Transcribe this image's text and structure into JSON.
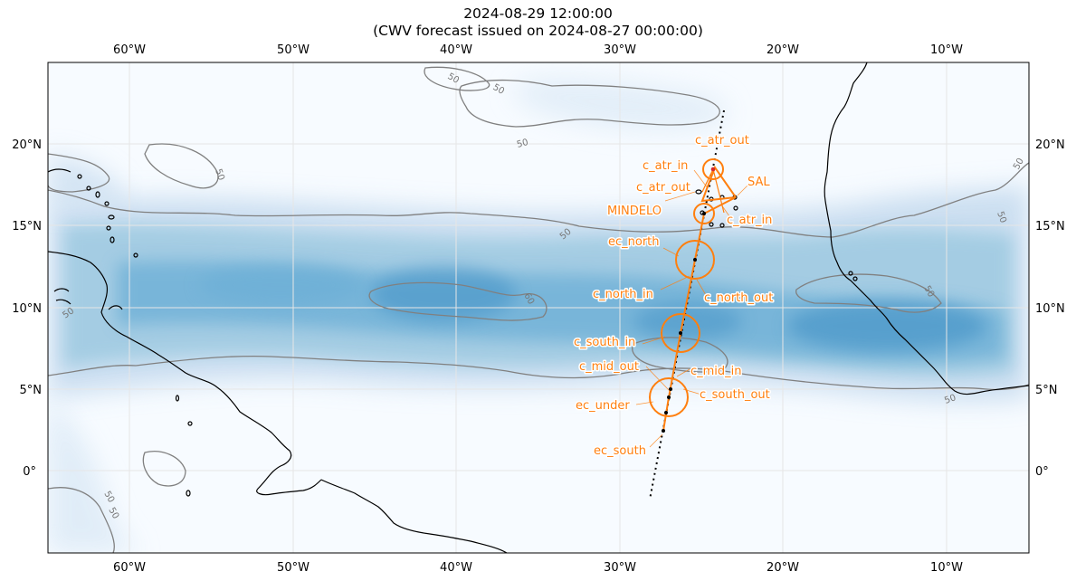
{
  "title": {
    "line1": "2024-08-29 12:00:00",
    "line2": "(CWV forecast issued on 2024-08-27 00:00:00)"
  },
  "axes": {
    "lon_ticks": [
      "60°W",
      "50°W",
      "40°W",
      "30°W",
      "20°W",
      "10°W"
    ],
    "lat_ticks": [
      "20°N",
      "15°N",
      "10°N",
      "5°N",
      "0°"
    ]
  },
  "extent": {
    "lon": [
      -65,
      -5
    ],
    "lat": [
      -5,
      25
    ]
  },
  "colors": {
    "flight": "#ff7f0e",
    "coast": "#000000",
    "contour": "#808080",
    "cwv_low": "#f7fbff",
    "cwv_high": "#2f7ebc",
    "grid": "#e6e6e6",
    "position_marker": "#d62728"
  },
  "contour_labels": [
    "50",
    "50",
    "50",
    "50",
    "50",
    "50",
    "50",
    "60",
    "50",
    "50",
    "50",
    "50",
    "50"
  ],
  "flight_labels": [
    "c_atr_out",
    "c_atr_in",
    "c_atr_out",
    "SAL",
    "MINDELO",
    "c_atr_in",
    "ec_north",
    "c_north_in",
    "c_north_out",
    "c_south_in",
    "c_mid_out",
    "c_mid_in",
    "c_south_out",
    "ec_under",
    "ec_south"
  ]
}
